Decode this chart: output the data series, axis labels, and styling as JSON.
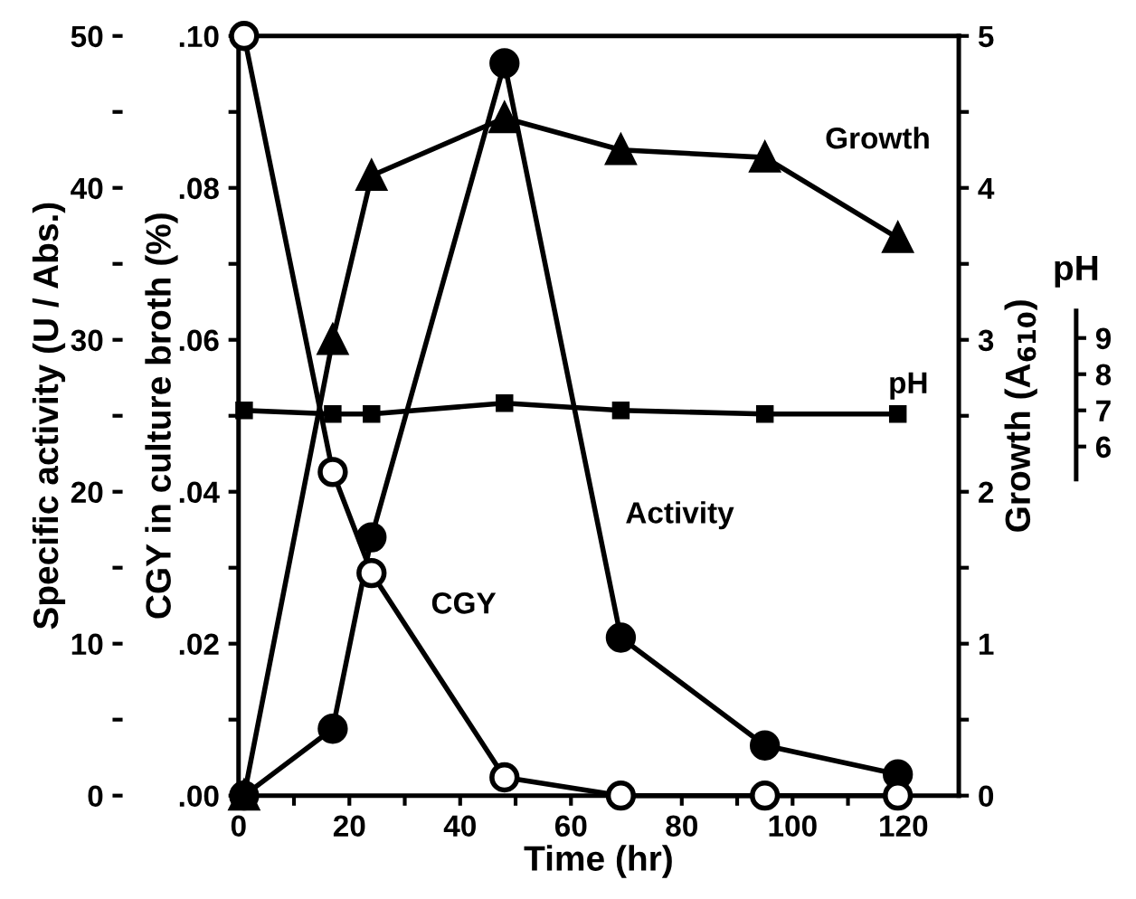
{
  "chart_data": [
    {
      "type": "line",
      "xlabel": "Time (hr)",
      "ylabel": "Specific activity (U / Abs.)",
      "y2label": "CGY in culture broth (%)",
      "xlim": [
        0,
        130
      ],
      "xticks": [
        0,
        {
          "value": 10,
          "label": null
        },
        20,
        {
          "value": 30,
          "label": null
        },
        40,
        {
          "value": 50,
          "label": null
        },
        60,
        {
          "value": 70,
          "label": null
        },
        80,
        {
          "value": 90,
          "label": null
        },
        100,
        {
          "value": 110,
          "label": null
        },
        120
      ],
      "ylim": [
        0,
        50
      ],
      "yticks": [
        0,
        {
          "value": 5,
          "label": null
        },
        10,
        {
          "value": 15,
          "label": null
        },
        20,
        {
          "value": 25,
          "label": null
        },
        30,
        {
          "value": 35,
          "label": null
        },
        40,
        {
          "value": 45,
          "label": null
        },
        50
      ],
      "y2lim": [
        0,
        0.1
      ],
      "y2ticks": [
        {
          "value": 0,
          "label": ".00"
        },
        {
          "value": 0.01,
          "label": null
        },
        {
          "value": 0.02,
          "label": ".02"
        },
        {
          "value": 0.03,
          "label": null
        },
        {
          "value": 0.04,
          "label": ".04"
        },
        {
          "value": 0.05,
          "label": null
        },
        {
          "value": 0.06,
          "label": ".06"
        },
        {
          "value": 0.07,
          "label": null
        },
        {
          "value": 0.08,
          "label": ".08"
        },
        {
          "value": 0.09,
          "label": null
        },
        {
          "value": 0.1,
          "label": ".10"
        }
      ],
      "grid": false,
      "legend": false,
      "line_style": "solid",
      "x": [
        1,
        17,
        24,
        48,
        69,
        95,
        119
      ],
      "series": [
        {
          "name": "Activity",
          "color": "#000000",
          "marker": "circle",
          "values": [
            0,
            4.4,
            17.0,
            48.2,
            10.4,
            3.3,
            1.4
          ]
        },
        {
          "name": "CGY",
          "color": "#000000",
          "marker": "circle",
          "axis": "y2",
          "values": [
            0.1,
            0.0426,
            0.0293,
            0.0024,
            0,
            0,
            0
          ]
        }
      ]
    },
    {
      "type": "line",
      "ylabel": "Growth (A$_{610}$)",
      "y2label": "pH",
      "xlim": [
        0,
        130
      ],
      "tick_labels": "y",
      "ylim": [
        0,
        5
      ],
      "yticks": [
        0,
        {
          "value": 0.5,
          "label": null
        },
        1,
        {
          "value": 1.5,
          "label": null
        },
        2,
        {
          "value": 2.5,
          "label": null
        },
        3,
        {
          "value": 3.5,
          "label": null
        },
        4,
        {
          "value": 4.5,
          "label": null
        },
        5
      ],
      "y2lim": [
        -3.65,
        17.35
      ],
      "y2ticks": [
        6,
        7,
        8,
        9
      ],
      "grid": false,
      "legend": false,
      "line_style": "solid",
      "x": [
        1,
        17,
        24,
        48,
        69,
        95,
        119
      ],
      "series": [
        {
          "name": "Growth",
          "color": "#000000",
          "marker": "triangle",
          "values": [
            0,
            3.0,
            4.08,
            4.46,
            4.25,
            4.2,
            3.67
          ]
        },
        {
          "name": "pH",
          "color": "#000000",
          "marker": "square",
          "axis": "y2",
          "values": [
            7.0,
            6.9,
            6.9,
            7.2,
            7.0,
            6.9,
            6.9
          ]
        }
      ]
    }
  ]
}
